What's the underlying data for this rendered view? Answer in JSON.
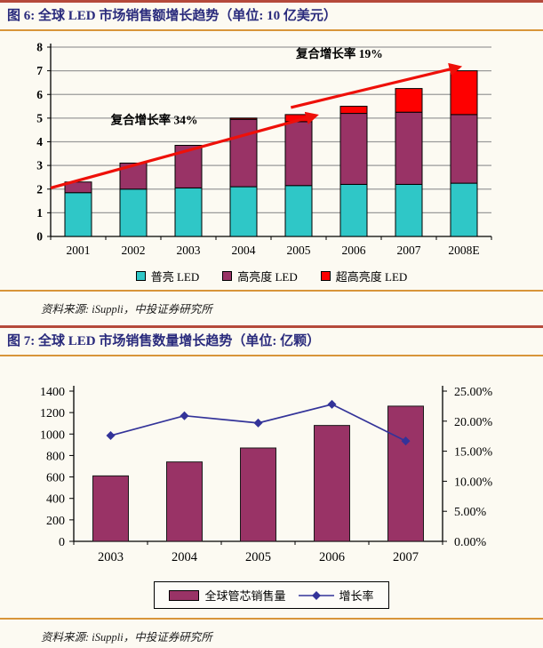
{
  "figures": {
    "fig6": {
      "title": "图 6: 全球 LED 市场销售额增长趋势（单位: 10 亿美元）",
      "source": "资料来源: iSuppli，中投证券研究所"
    },
    "fig7": {
      "title": "图 7: 全球 LED 市场销售数量增长趋势（单位: 亿颗）",
      "source": "资料来源: iSuppli，中投证券研究所"
    }
  },
  "colors": {
    "header_line": "#b5493b",
    "accent_line": "#d8953a",
    "title_text": "#292a7c",
    "arrow_red": "#ee1009",
    "annotation_blue": "#2323c8",
    "grid_gray": "#9a9a9a",
    "teal": "#2fc7c7",
    "maroon": "#993366",
    "bright_red": "#fe0000",
    "navy_line": "#333399"
  },
  "chart_data": [
    {
      "type": "bar",
      "stacked": true,
      "title": "全球 LED 市场销售额增长趋势",
      "xlabel": "",
      "ylabel": "",
      "categories": [
        "2001",
        "2002",
        "2003",
        "2004",
        "2005",
        "2006",
        "2007",
        "2008E"
      ],
      "series": [
        {
          "name": "普亮 LED",
          "color": "#2fc7c7",
          "values": [
            1.85,
            2.0,
            2.05,
            2.1,
            2.15,
            2.2,
            2.2,
            2.25
          ]
        },
        {
          "name": "高亮度 LED",
          "color": "#993366",
          "values": [
            0.45,
            1.1,
            1.8,
            2.85,
            2.7,
            3.0,
            3.05,
            2.9
          ]
        },
        {
          "name": "超高亮度 LED",
          "color": "#fe0000",
          "values": [
            0,
            0,
            0,
            0.05,
            0.3,
            0.3,
            1.0,
            1.85
          ]
        }
      ],
      "totals": [
        2.3,
        3.1,
        3.85,
        5.0,
        5.15,
        5.5,
        6.25,
        7.0
      ],
      "ylim": [
        0,
        8
      ],
      "ytick_step": 1,
      "grid": true,
      "legend_position": "bottom",
      "annotations": [
        {
          "text": "复合增长率 34%",
          "color": "#2323c8",
          "tx": 0.235,
          "tv": 4.75,
          "arrow": {
            "fx1": 0.0,
            "v1": 2.05,
            "fx2": 0.6,
            "v2": 5.1
          }
        },
        {
          "text": "复合增长率 19%",
          "color": "#2323c8",
          "tx": 0.655,
          "tv": 7.55,
          "arrow": {
            "fx1": 0.545,
            "v1": 5.45,
            "fx2": 0.925,
            "v2": 7.15
          }
        }
      ]
    },
    {
      "type": "bar",
      "subtype": "bar-line-combo",
      "title": "全球 LED 市场销售数量增长趋势",
      "xlabel": "",
      "ylabel": "",
      "categories": [
        "2003",
        "2004",
        "2005",
        "2006",
        "2007"
      ],
      "bar_series": {
        "name": "全球管芯销售量",
        "color": "#993366",
        "axis": "left",
        "values": [
          610,
          740,
          870,
          1080,
          1260
        ]
      },
      "line_series": {
        "name": "增长率",
        "color": "#333399",
        "axis": "right",
        "marker": "diamond",
        "values_pct": [
          17.6,
          20.9,
          19.7,
          22.8,
          16.7
        ]
      },
      "left_ylim": [
        0,
        1400
      ],
      "left_ytick_step": 200,
      "right_ylim_pct": [
        0,
        25
      ],
      "right_ytick_step_pct": 5,
      "right_tick_format": "0.00%",
      "grid": false,
      "legend_position": "bottom-box"
    }
  ]
}
